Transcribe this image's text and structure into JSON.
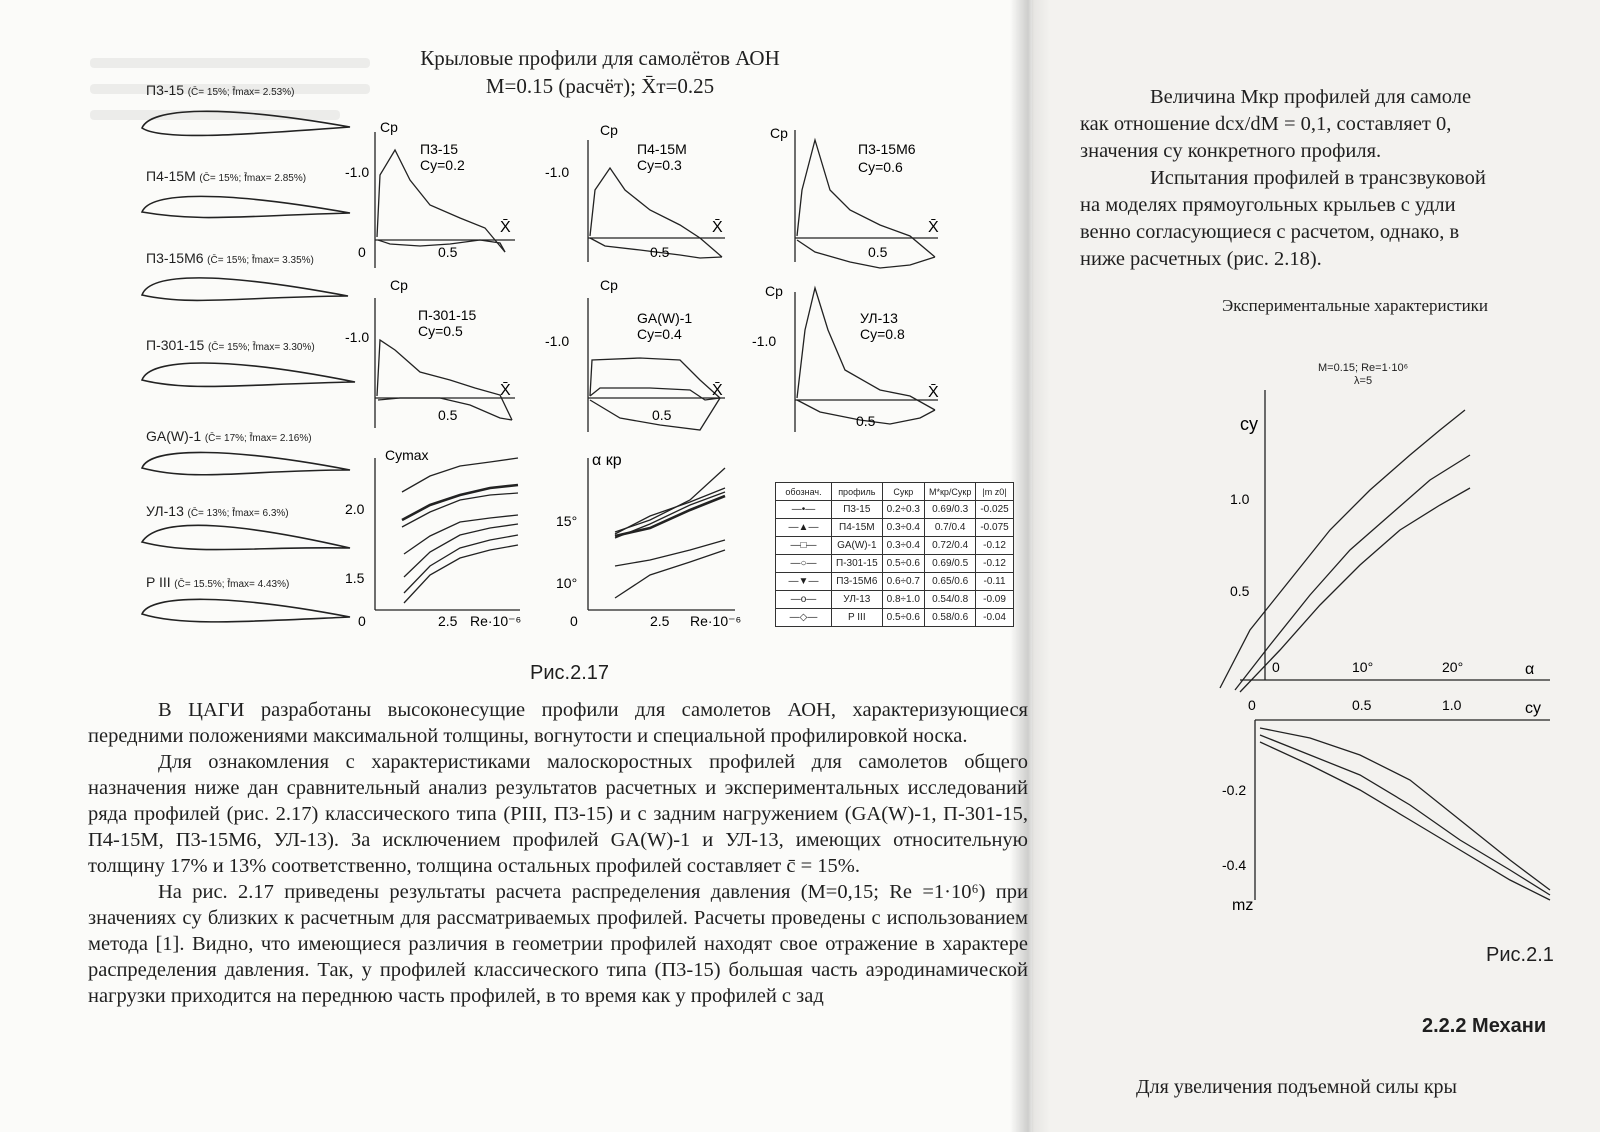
{
  "figure": {
    "title_line1": "Крыловые профили для самолётов АОН",
    "title_line2": "M=0.15 (расчёт);   X̄т=0.25",
    "caption": "Рис.2.17",
    "profiles": [
      {
        "name": "П3-15",
        "params": "(C̄= 15%;  f̄max= 2.53%)"
      },
      {
        "name": "П4-15М",
        "params": "(C̄= 15%;  f̄max= 2.85%)"
      },
      {
        "name": "П3-15М6",
        "params": "(C̄= 15%;  f̄max= 3.35%)"
      },
      {
        "name": "П-301-15",
        "params": "(C̄= 15%;  f̄max= 3.30%)"
      },
      {
        "name": "GA(W)-1",
        "params": "(C̄= 17%;  f̄max= 2.16%)"
      },
      {
        "name": "УЛ-13",
        "params": "(C̄= 13%;  f̄max= 6.3%)"
      },
      {
        "name": "P III",
        "params": "(C̄= 15.5%;  f̄max= 4.43%)"
      }
    ],
    "pressure_plots": [
      {
        "label": "П3-15",
        "cy": "Cy=0.2"
      },
      {
        "label": "П4-15М",
        "cy": "Cy=0.3"
      },
      {
        "label": "П3-15М6",
        "cy": "Cy=0.6"
      },
      {
        "label": "П-301-15",
        "cy": "Cy=0.5"
      },
      {
        "label": "GA(W)-1",
        "cy": "Cy=0.4"
      },
      {
        "label": "УЛ-13",
        "cy": "Cy=0.8"
      }
    ],
    "axis": {
      "cp": "Cp",
      "xbar": "X̄",
      "tick_neg1": "-1.0",
      "tick_05": "0.5",
      "zero": "0",
      "cymax": "Cymax",
      "alpha_kr": "α кр",
      "re": "Re·10⁻⁶",
      "re_tick": "2.5",
      "cy_ticks": [
        "2.0",
        "1.5"
      ],
      "alpha_ticks": [
        "15°",
        "10°"
      ]
    },
    "legend": {
      "headers": [
        "обознач.",
        "профиль",
        "Cyкр",
        "M*кр/Cyкр",
        "|m z0|"
      ],
      "rows": [
        {
          "profile": "П3-15",
          "cy": "0.2÷0.3",
          "m": "0.69/0.3",
          "mz": "-0.025"
        },
        {
          "profile": "П4-15М",
          "cy": "0.3÷0.4",
          "m": "0.7/0.4",
          "mz": "-0.075"
        },
        {
          "profile": "GA(W)-1",
          "cy": "0.3÷0.4",
          "m": "0.72/0.4",
          "mz": "-0.12"
        },
        {
          "profile": "П-301-15",
          "cy": "0.5÷0.6",
          "m": "0.69/0.5",
          "mz": "-0.12"
        },
        {
          "profile": "П3-15М6",
          "cy": "0.6÷0.7",
          "m": "0.65/0.6",
          "mz": "-0.11"
        },
        {
          "profile": "УЛ-13",
          "cy": "0.8÷1.0",
          "m": "0.54/0.8",
          "mz": "-0.09"
        },
        {
          "profile": "P III",
          "cy": "0.5÷0.6",
          "m": "0.58/0.6",
          "mz": "-0.04"
        }
      ]
    }
  },
  "left_text": {
    "p1": "В ЦАГИ разработаны высоконесущие профили для самолетов АОН, характеризующиеся передними положениями максимальной толщины, вогнутости и специальной профилировкой носка.",
    "p2": "Для ознакомления с характеристиками малоскоростных профилей для самолетов общего назначения ниже дан сравнительный анализ результатов расчетных и экспериментальных исследований ряда профилей (рис. 2.17) классического типа (PIII, П3-15) и с задним нагружением (GA(W)-1, П-301-15, П4-15М, П3-15М6, УЛ-13). За исключением профилей GA(W)-1 и УЛ-13, имеющих относительную толщину 17% и 13% соответственно, толщина остальных профилей составляет c̄ = 15%.",
    "p3": "На рис. 2.17 приведены результаты расчета распределения давления (M=0,15; Re =1·10⁶) при значениях cy близких к расчетным для рассматриваемых профилей. Расчеты проведены с использованием метода [1]. Видно, что имеющиеся различия в геометрии профилей находят свое отражение в характере распределения давления. Так, у профилей классического типа (П3-15) большая часть аэродинамической нагрузки приходится на переднюю часть профилей, в то время как у профилей с зад"
  },
  "right_text": {
    "l1": "Величина Mкр профилей для самоле",
    "l2": "как отношение dcx/dM = 0,1, составляет 0,",
    "l3": "значения cy конкретного профиля.",
    "l4": "Испытания профилей в трансзвуковой",
    "l5": "на моделях прямоугольных крыльев с удли",
    "l6": "венно согласующиеся с расчетом, однако, в",
    "l7": "ниже расчетных (рис. 2.18).",
    "heading": "Экспериментальные характеристики",
    "cond1": "M=0.15; Re=1·10⁶",
    "cond2": "λ=5",
    "chart": {
      "cy": "cy",
      "ticks_cy": [
        "1.0",
        "0.5"
      ],
      "ticks_alpha": [
        "0",
        "10°",
        "20°"
      ],
      "alpha": "α",
      "ticks_cy2": [
        "0",
        "0.5",
        "1.0"
      ],
      "cy2": "cy",
      "ticks_mz": [
        "-0.2",
        "-0.4"
      ],
      "mz": "mz"
    },
    "caption": "Рис.2.1",
    "section": "2.2.2 Механи",
    "bottom": "Для увеличения подъемной силы кры"
  }
}
